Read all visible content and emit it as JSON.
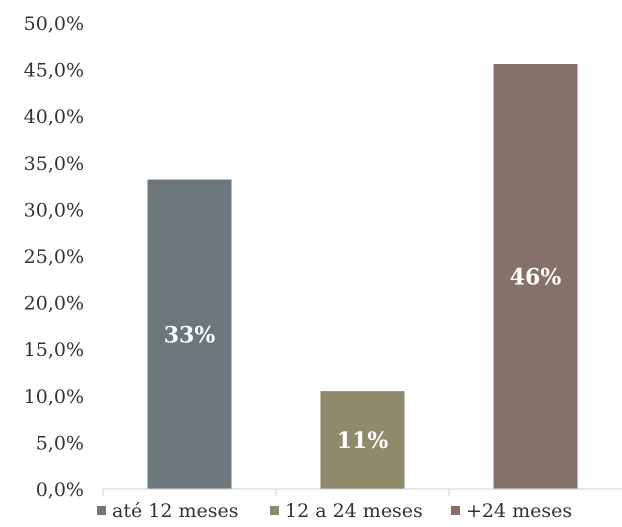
{
  "chart_data": {
    "type": "bar",
    "categories": [
      "até 12 meses",
      "12 a 24 meses",
      "+24 meses"
    ],
    "values": [
      33.2,
      10.5,
      45.6
    ],
    "data_labels": [
      "33%",
      "11%",
      "46%"
    ],
    "colors": [
      "#6d767b",
      "#8f8a6c",
      "#85706a"
    ],
    "ylim": [
      0,
      50
    ],
    "y_ticks": [
      0,
      5,
      10,
      15,
      20,
      25,
      30,
      35,
      40,
      45,
      50
    ],
    "y_tick_labels": [
      "0,0%",
      "5,0%",
      "10,0%",
      "15,0%",
      "20,0%",
      "25,0%",
      "30,0%",
      "35,0%",
      "40,0%",
      "45,0%",
      "50,0%"
    ],
    "grid": false,
    "legend": {
      "position": "bottom",
      "entries": [
        "até 12 meses",
        "12 a 24 meses",
        "+24 meses"
      ]
    },
    "title": "",
    "xlabel": "",
    "ylabel": ""
  }
}
